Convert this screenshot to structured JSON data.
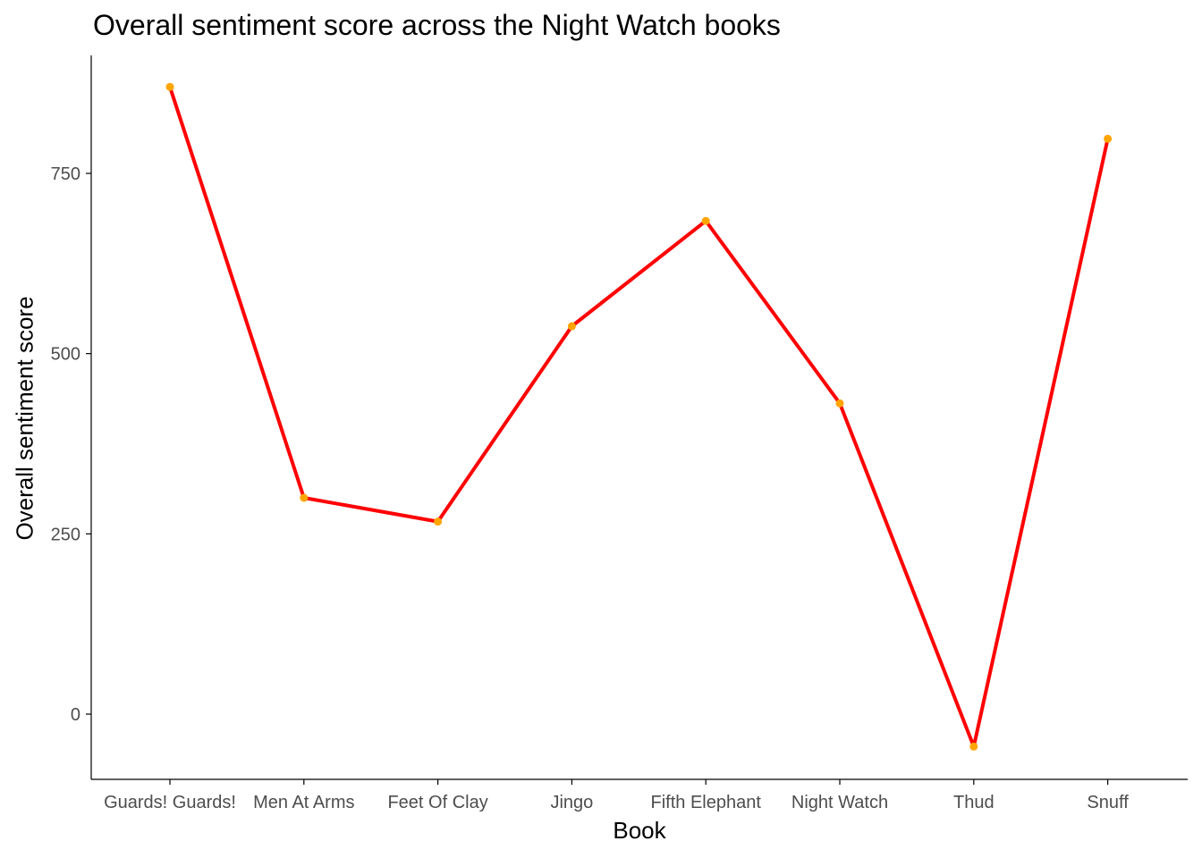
{
  "chart_data": {
    "type": "line",
    "title": "Overall sentiment score across the Night Watch books",
    "xlabel": "Book",
    "ylabel": "Overall sentiment score",
    "categories": [
      "Guards! Guards!",
      "Men At Arms",
      "Feet Of Clay",
      "Jingo",
      "Fifth Elephant",
      "Night Watch",
      "Thud",
      "Snuff"
    ],
    "values": [
      870,
      300,
      267,
      538,
      684,
      431,
      -45,
      798
    ],
    "yticks": [
      0,
      250,
      500,
      750
    ],
    "ylim": [
      -90,
      915
    ],
    "grid": false,
    "legend": "none",
    "colors": {
      "line": "#ff0000",
      "point": "#ffa500",
      "axis": "#000000",
      "tick_text": "#4d4d4d"
    }
  }
}
